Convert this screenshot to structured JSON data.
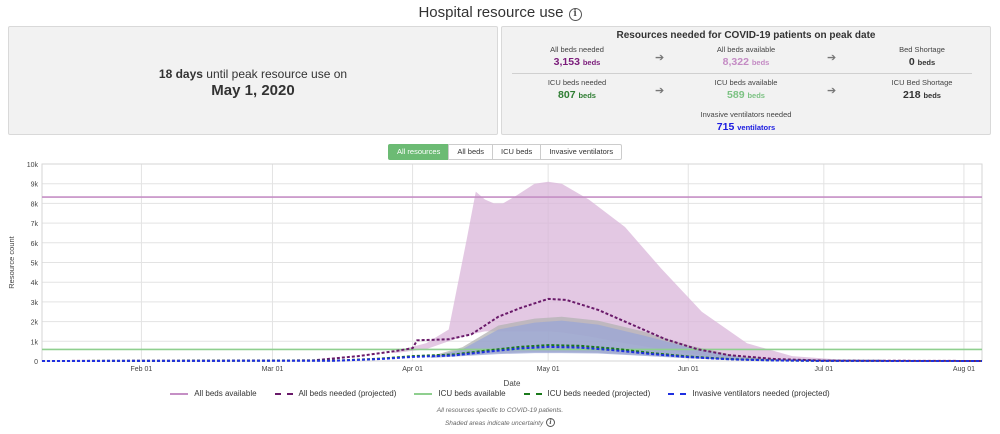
{
  "header": {
    "title": "Hospital resource use"
  },
  "peak": {
    "days_number": "18 days",
    "days_text": " until peak resource use on",
    "date": "May 1, 2020"
  },
  "resources": {
    "title": "Resources needed for COVID-19 patients on peak date",
    "all_beds_needed": {
      "label": "All beds needed",
      "value": "3,153",
      "unit": "beds",
      "color": "#7b1c7b"
    },
    "all_beds_available": {
      "label": "All beds available",
      "value": "8,322",
      "unit": "beds",
      "color": "#c48bc4"
    },
    "bed_shortage": {
      "label": "Bed Shortage",
      "value": "0",
      "unit": "beds",
      "color": "#333333"
    },
    "icu_needed": {
      "label": "ICU beds needed",
      "value": "807",
      "unit": "beds",
      "color": "#2e7d32"
    },
    "icu_available": {
      "label": "ICU beds available",
      "value": "589",
      "unit": "beds",
      "color": "#7cc283"
    },
    "icu_shortage": {
      "label": "ICU Bed Shortage",
      "value": "218",
      "unit": "beds",
      "color": "#333333"
    },
    "vent_needed": {
      "label": "Invasive ventilators needed",
      "value": "715",
      "unit": "ventilators",
      "color": "#1a1ae0"
    }
  },
  "tabs": [
    "All resources",
    "All beds",
    "ICU beds",
    "Invasive ventilators"
  ],
  "active_tab": "All resources",
  "legend": [
    {
      "label": "All beds available",
      "color": "#c58fc5",
      "style": "solid"
    },
    {
      "label": "All beds needed (projected)",
      "color": "#6a1a6a",
      "style": "dashed"
    },
    {
      "label": "ICU beds available",
      "color": "#8fcf8f",
      "style": "solid"
    },
    {
      "label": "ICU beds needed (projected)",
      "color": "#1b7a1b",
      "style": "dashed"
    },
    {
      "label": "Invasive ventilators needed (projected)",
      "color": "#1f2fe0",
      "style": "dashed"
    }
  ],
  "notes": {
    "line1": "All resources specific to COVID-19 patients.",
    "line2": "Shaded areas indicate uncertainty"
  },
  "chart_data": {
    "type": "line",
    "xlabel": "Date",
    "ylabel": "Resource count",
    "x_start": "2020-01-10",
    "x_end": "2020-08-05",
    "ylim": [
      0,
      10000
    ],
    "yticks": [
      0,
      1000,
      2000,
      3000,
      4000,
      5000,
      6000,
      7000,
      8000,
      9000,
      10000
    ],
    "ytick_labels": [
      "0",
      "1k",
      "2k",
      "3k",
      "4k",
      "5k",
      "6k",
      "7k",
      "8k",
      "9k",
      "10k"
    ],
    "xticks": [
      "2020-02-01",
      "2020-03-01",
      "2020-04-01",
      "2020-05-01",
      "2020-06-01",
      "2020-07-01",
      "2020-08-01"
    ],
    "xtick_labels": [
      "Feb 01",
      "Mar 01",
      "Apr 01",
      "May 01",
      "Jun 01",
      "Jul 01",
      "Aug 01"
    ],
    "grid": true,
    "legend_position": "bottom",
    "series": [
      {
        "name": "All beds available",
        "color": "#c58fc5",
        "style": "solid",
        "x": [
          "2020-01-10",
          "2020-08-05"
        ],
        "y": [
          8322,
          8322
        ]
      },
      {
        "name": "ICU beds available",
        "color": "#8fcf8f",
        "style": "solid",
        "x": [
          "2020-01-10",
          "2020-08-05"
        ],
        "y": [
          589,
          589
        ]
      },
      {
        "name": "All beds needed (projected)",
        "color": "#6a1a6a",
        "style": "dashed",
        "x": [
          "2020-01-10",
          "2020-03-10",
          "2020-03-20",
          "2020-03-28",
          "2020-04-01",
          "2020-04-02",
          "2020-04-09",
          "2020-04-14",
          "2020-04-20",
          "2020-04-25",
          "2020-05-01",
          "2020-05-05",
          "2020-05-12",
          "2020-05-20",
          "2020-05-27",
          "2020-06-03",
          "2020-06-10",
          "2020-06-20",
          "2020-07-01",
          "2020-08-05"
        ],
        "y": [
          0,
          30,
          250,
          500,
          650,
          1050,
          1100,
          1350,
          2250,
          2700,
          3153,
          3100,
          2600,
          1800,
          1100,
          600,
          300,
          100,
          20,
          0
        ]
      },
      {
        "name": "ICU beds needed (projected)",
        "color": "#1b7a1b",
        "style": "dashed",
        "x": [
          "2020-01-10",
          "2020-03-15",
          "2020-03-25",
          "2020-04-01",
          "2020-04-10",
          "2020-04-18",
          "2020-04-25",
          "2020-05-01",
          "2020-05-08",
          "2020-05-16",
          "2020-05-24",
          "2020-06-01",
          "2020-06-10",
          "2020-06-20",
          "2020-07-01",
          "2020-08-05"
        ],
        "y": [
          0,
          20,
          120,
          250,
          330,
          550,
          720,
          807,
          770,
          620,
          400,
          230,
          100,
          30,
          5,
          0
        ]
      },
      {
        "name": "Invasive ventilators needed (projected)",
        "color": "#1f2fe0",
        "style": "dashed",
        "x": [
          "2020-01-10",
          "2020-03-15",
          "2020-03-25",
          "2020-04-01",
          "2020-04-10",
          "2020-04-18",
          "2020-04-25",
          "2020-05-01",
          "2020-05-08",
          "2020-05-16",
          "2020-05-24",
          "2020-06-01",
          "2020-06-10",
          "2020-06-20",
          "2020-07-01",
          "2020-08-05"
        ],
        "y": [
          0,
          15,
          100,
          210,
          280,
          480,
          640,
          715,
          680,
          540,
          350,
          200,
          85,
          25,
          5,
          0
        ]
      }
    ],
    "bands": [
      {
        "series": "All beds needed (projected)",
        "color": "#d9b5d9",
        "x": [
          "2020-03-28",
          "2020-04-04",
          "2020-04-09",
          "2020-04-13",
          "2020-04-15",
          "2020-04-17",
          "2020-04-19",
          "2020-04-21",
          "2020-04-24",
          "2020-04-28",
          "2020-05-01",
          "2020-05-04",
          "2020-05-10",
          "2020-05-18",
          "2020-05-26",
          "2020-06-04",
          "2020-06-14",
          "2020-06-24",
          "2020-07-05",
          "2020-07-15"
        ],
        "upper": [
          500,
          900,
          1600,
          6200,
          8600,
          8200,
          8000,
          8000,
          8400,
          9000,
          9100,
          9000,
          8200,
          6800,
          4700,
          2500,
          900,
          250,
          60,
          0
        ],
        "lower": [
          400,
          600,
          1000,
          1300,
          1400,
          1500,
          1500,
          1500,
          1500,
          1500,
          1500,
          1450,
          1250,
          900,
          600,
          300,
          120,
          40,
          10,
          0
        ]
      },
      {
        "series": "ICU beds needed (projected)",
        "color": "#b3b3b3",
        "x": [
          "2020-04-05",
          "2020-04-12",
          "2020-04-20",
          "2020-04-28",
          "2020-05-04",
          "2020-05-12",
          "2020-05-22",
          "2020-06-01",
          "2020-06-12",
          "2020-06-25"
        ],
        "upper": [
          250,
          700,
          1800,
          2150,
          2250,
          2050,
          1500,
          800,
          250,
          20
        ],
        "lower": [
          200,
          300,
          400,
          450,
          450,
          420,
          300,
          150,
          50,
          0
        ]
      },
      {
        "series": "Invasive ventilators needed (projected)",
        "color": "#9aa6d6",
        "x": [
          "2020-04-05",
          "2020-04-12",
          "2020-04-20",
          "2020-04-28",
          "2020-05-04",
          "2020-05-12",
          "2020-05-22",
          "2020-06-01",
          "2020-06-12",
          "2020-06-25"
        ],
        "upper": [
          200,
          600,
          1600,
          1950,
          2050,
          1850,
          1300,
          700,
          200,
          15
        ],
        "lower": [
          150,
          250,
          350,
          400,
          400,
          380,
          260,
          130,
          40,
          0
        ]
      }
    ]
  }
}
